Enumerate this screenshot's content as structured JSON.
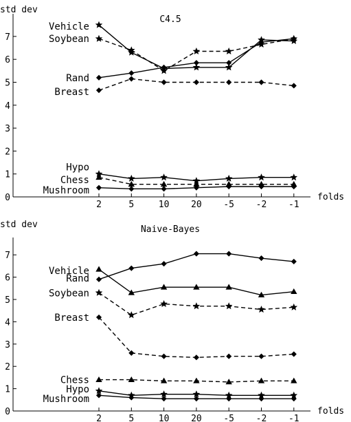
{
  "chart_data": [
    {
      "type": "line",
      "title": "C4.5",
      "ylabel": "std dev",
      "xlabel": "folds",
      "categories": [
        "2",
        "5",
        "10",
        "20",
        "-5",
        "-2",
        "-1"
      ],
      "ylim": [
        0,
        7.5
      ],
      "yticks": [
        0,
        1,
        2,
        3,
        4,
        5,
        6,
        7
      ],
      "series": [
        {
          "name": "Vehicle",
          "values": [
            7.5,
            6.3,
            5.6,
            5.65,
            5.65,
            6.85,
            6.8
          ],
          "dashed": false,
          "marker": "star"
        },
        {
          "name": "Soybean",
          "values": [
            6.9,
            6.4,
            5.5,
            6.35,
            6.35,
            6.65,
            6.9
          ],
          "dashed": true,
          "marker": "star"
        },
        {
          "name": "Rand",
          "values": [
            5.2,
            5.4,
            5.65,
            5.85,
            5.85,
            6.75,
            6.9
          ],
          "dashed": false,
          "marker": "diamond"
        },
        {
          "name": "Breast",
          "values": [
            4.65,
            5.15,
            5.0,
            5.0,
            5.0,
            5.0,
            4.85
          ],
          "dashed": true,
          "marker": "diamond"
        },
        {
          "name": "Hypo",
          "values": [
            1.0,
            0.8,
            0.85,
            0.7,
            0.8,
            0.85,
            0.85
          ],
          "dashed": false,
          "marker": "star"
        },
        {
          "name": "Chess",
          "values": [
            0.85,
            0.55,
            0.55,
            0.55,
            0.55,
            0.55,
            0.55
          ],
          "dashed": true,
          "marker": "triangle"
        },
        {
          "name": "Mushroom",
          "values": [
            0.4,
            0.35,
            0.35,
            0.4,
            0.45,
            0.45,
            0.45
          ],
          "dashed": false,
          "marker": "diamond"
        }
      ],
      "labels": [
        {
          "text": "Vehicle",
          "y": 7.45
        },
        {
          "text": "Soybean",
          "y": 6.9
        },
        {
          "text": "Rand",
          "y": 5.2
        },
        {
          "text": "Breast",
          "y": 4.6
        },
        {
          "text": "Hypo",
          "y": 1.3
        },
        {
          "text": "Chess",
          "y": 0.75
        },
        {
          "text": "Mushroom",
          "y": 0.3
        }
      ]
    },
    {
      "type": "line",
      "title": "Naive-Bayes",
      "ylabel": "std dev",
      "xlabel": "folds",
      "categories": [
        "2",
        "5",
        "10",
        "20",
        "-5",
        "-2",
        "-1"
      ],
      "ylim": [
        0,
        7.5
      ],
      "yticks": [
        0,
        1,
        2,
        3,
        4,
        5,
        6,
        7
      ],
      "series": [
        {
          "name": "Vehicle",
          "values": [
            6.35,
            5.3,
            5.55,
            5.55,
            5.55,
            5.2,
            5.35
          ],
          "dashed": false,
          "marker": "triangle"
        },
        {
          "name": "Rand",
          "values": [
            5.9,
            6.4,
            6.6,
            7.05,
            7.05,
            6.85,
            6.7
          ],
          "dashed": false,
          "marker": "diamond"
        },
        {
          "name": "Soybean",
          "values": [
            5.3,
            4.3,
            4.8,
            4.7,
            4.7,
            4.55,
            4.65
          ],
          "dashed": true,
          "marker": "star"
        },
        {
          "name": "Breast",
          "values": [
            4.2,
            2.6,
            2.45,
            2.4,
            2.45,
            2.45,
            2.55
          ],
          "dashed": true,
          "marker": "diamond"
        },
        {
          "name": "Chess",
          "values": [
            1.4,
            1.4,
            1.35,
            1.35,
            1.3,
            1.35,
            1.35
          ],
          "dashed": true,
          "marker": "triangle"
        },
        {
          "name": "Hypo",
          "values": [
            0.9,
            0.7,
            0.75,
            0.75,
            0.7,
            0.7,
            0.7
          ],
          "dashed": false,
          "marker": "star"
        },
        {
          "name": "Mushroom",
          "values": [
            0.7,
            0.6,
            0.55,
            0.55,
            0.55,
            0.55,
            0.55
          ],
          "dashed": false,
          "marker": "diamond"
        }
      ],
      "labels": [
        {
          "text": "Vehicle",
          "y": 6.3
        },
        {
          "text": "Rand",
          "y": 5.95
        },
        {
          "text": "Soybean",
          "y": 5.3
        },
        {
          "text": "Breast",
          "y": 4.2
        },
        {
          "text": "Chess",
          "y": 1.4
        },
        {
          "text": "Hypo",
          "y": 0.98
        },
        {
          "text": "Mushroom",
          "y": 0.55
        }
      ]
    }
  ]
}
